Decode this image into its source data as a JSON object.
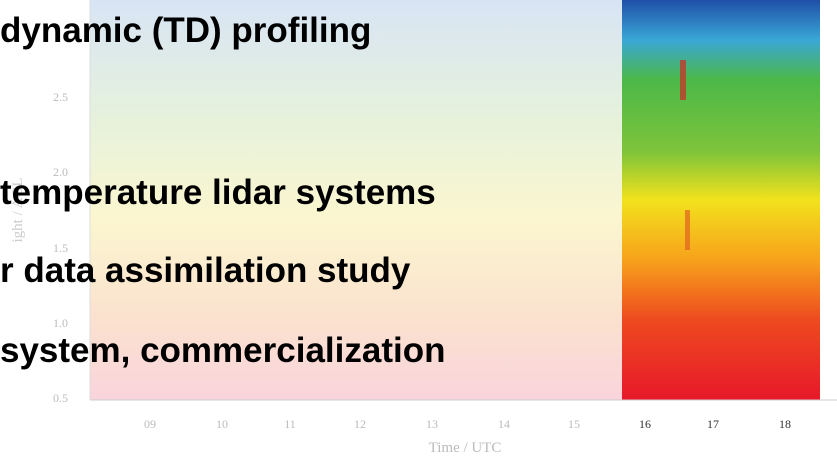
{
  "slide": {
    "lines": [
      "dynamic (TD) profiling",
      "temperature lidar systems",
      "r data assimilation study",
      "system, commercialization"
    ]
  },
  "background_figure": {
    "y_axis_label": "ight / AGL",
    "y_tick_labels": [
      "2.5",
      "2.0",
      "1.5",
      "1.0",
      "0.5"
    ],
    "x_tick_labels": [
      "09",
      "10",
      "11",
      "12",
      "13",
      "14",
      "15",
      "16",
      "17",
      "18"
    ],
    "x_axis_label": "Time / UTC"
  }
}
